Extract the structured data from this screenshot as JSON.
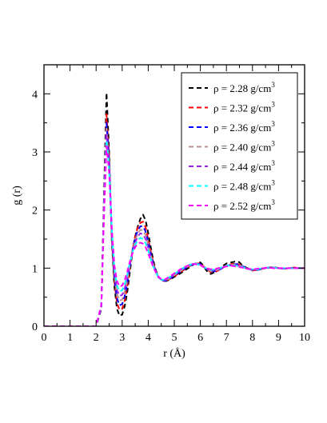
{
  "chart_data": {
    "type": "line",
    "title": "",
    "xlabel": "r (Å)",
    "ylabel": "g (r)",
    "xlim": [
      0,
      10
    ],
    "ylim": [
      0,
      4.5
    ],
    "xticks": [
      0,
      1,
      2,
      3,
      4,
      5,
      6,
      7,
      8,
      9,
      10
    ],
    "yticks": [
      0,
      1,
      2,
      3,
      4
    ],
    "grid": false,
    "legend_position": "top-right",
    "line_style": "dashed",
    "series": [
      {
        "name": "ρ = 2.28 g/cm",
        "sup": "3",
        "color": "#000000",
        "x": [
          0,
          2.0,
          2.2,
          2.3,
          2.4,
          2.5,
          2.6,
          2.7,
          2.8,
          2.9,
          3.0,
          3.1,
          3.2,
          3.3,
          3.4,
          3.5,
          3.6,
          3.7,
          3.8,
          3.9,
          4.0,
          4.1,
          4.2,
          4.3,
          4.4,
          4.5,
          4.6,
          4.7,
          4.8,
          4.9,
          5.0,
          5.2,
          5.4,
          5.6,
          5.8,
          6.0,
          6.1,
          6.2,
          6.3,
          6.4,
          6.5,
          6.6,
          6.8,
          7.0,
          7.2,
          7.4,
          7.5,
          7.6,
          7.8,
          8.0,
          8.2,
          8.4,
          8.6,
          8.8,
          9.0,
          9.2,
          9.4,
          9.6,
          9.8,
          10.0
        ],
        "y": [
          0,
          0,
          0.3,
          2.2,
          4.02,
          3.0,
          1.5,
          0.7,
          0.3,
          0.18,
          0.2,
          0.35,
          0.6,
          0.95,
          1.3,
          1.55,
          1.72,
          1.85,
          1.92,
          1.82,
          1.6,
          1.35,
          1.12,
          0.95,
          0.85,
          0.8,
          0.78,
          0.78,
          0.8,
          0.82,
          0.85,
          0.9,
          0.96,
          1.02,
          1.08,
          1.1,
          1.05,
          0.98,
          0.92,
          0.9,
          0.92,
          0.95,
          1.02,
          1.08,
          1.1,
          1.12,
          1.1,
          1.05,
          1.0,
          0.96,
          0.97,
          0.99,
          1.01,
          1.02,
          1.0,
          0.99,
          1.0,
          1.01,
          1.0,
          1.0
        ]
      },
      {
        "name": "ρ = 2.32 g/cm",
        "sup": "3",
        "color": "#ff0000",
        "x": [
          0,
          2.0,
          2.2,
          2.3,
          2.4,
          2.5,
          2.6,
          2.7,
          2.8,
          2.9,
          3.0,
          3.1,
          3.2,
          3.3,
          3.4,
          3.5,
          3.6,
          3.7,
          3.8,
          3.9,
          4.0,
          4.1,
          4.2,
          4.3,
          4.4,
          4.5,
          4.6,
          4.7,
          4.8,
          4.9,
          5.0,
          5.2,
          5.4,
          5.6,
          5.8,
          6.0,
          6.2,
          6.4,
          6.6,
          6.8,
          7.0,
          7.2,
          7.4,
          7.6,
          7.8,
          8.0,
          8.2,
          8.4,
          8.6,
          8.8,
          9.0,
          9.2,
          9.4,
          9.6,
          9.8,
          10.0
        ],
        "y": [
          0,
          0,
          0.32,
          2.1,
          3.65,
          2.9,
          1.55,
          0.78,
          0.4,
          0.28,
          0.3,
          0.45,
          0.7,
          1.02,
          1.32,
          1.55,
          1.7,
          1.78,
          1.8,
          1.7,
          1.5,
          1.28,
          1.08,
          0.93,
          0.84,
          0.8,
          0.78,
          0.79,
          0.81,
          0.83,
          0.86,
          0.92,
          0.98,
          1.04,
          1.08,
          1.08,
          1.0,
          0.93,
          0.94,
          0.99,
          1.04,
          1.07,
          1.08,
          1.04,
          0.99,
          0.96,
          0.97,
          0.99,
          1.0,
          1.02,
          1.0,
          0.99,
          1.0,
          1.01,
          1.0,
          1.0
        ]
      },
      {
        "name": "ρ = 2.36 g/cm",
        "sup": "3",
        "color": "#0000ff",
        "x": [
          0,
          2.0,
          2.2,
          2.3,
          2.4,
          2.5,
          2.6,
          2.7,
          2.8,
          2.9,
          3.0,
          3.1,
          3.2,
          3.3,
          3.4,
          3.5,
          3.6,
          3.7,
          3.8,
          3.9,
          4.0,
          4.1,
          4.2,
          4.3,
          4.4,
          4.5,
          4.6,
          4.7,
          4.8,
          4.9,
          5.0,
          5.2,
          5.4,
          5.6,
          5.8,
          6.0,
          6.2,
          6.4,
          6.6,
          6.8,
          7.0,
          7.2,
          7.4,
          7.6,
          7.8,
          8.0,
          8.2,
          8.4,
          8.6,
          8.8,
          9.0,
          9.2,
          9.4,
          9.6,
          9.8,
          10.0
        ],
        "y": [
          0,
          0,
          0.33,
          2.05,
          3.5,
          2.85,
          1.6,
          0.85,
          0.48,
          0.36,
          0.38,
          0.52,
          0.75,
          1.05,
          1.32,
          1.52,
          1.65,
          1.72,
          1.72,
          1.63,
          1.45,
          1.25,
          1.07,
          0.93,
          0.84,
          0.8,
          0.78,
          0.79,
          0.81,
          0.84,
          0.87,
          0.93,
          0.99,
          1.04,
          1.08,
          1.07,
          1.0,
          0.94,
          0.95,
          0.99,
          1.04,
          1.06,
          1.07,
          1.04,
          0.99,
          0.97,
          0.97,
          0.99,
          1.01,
          1.01,
          1.0,
          0.99,
          1.0,
          1.0,
          1.0,
          1.0
        ]
      },
      {
        "name": "ρ = 2.40 g/cm",
        "sup": "3",
        "color": "#bc8f8f",
        "x": [
          0,
          2.0,
          2.2,
          2.3,
          2.4,
          2.5,
          2.6,
          2.7,
          2.8,
          2.9,
          3.0,
          3.1,
          3.2,
          3.3,
          3.4,
          3.5,
          3.6,
          3.7,
          3.8,
          3.9,
          4.0,
          4.1,
          4.2,
          4.3,
          4.4,
          4.5,
          4.6,
          4.7,
          4.8,
          4.9,
          5.0,
          5.2,
          5.4,
          5.6,
          5.8,
          6.0,
          6.2,
          6.4,
          6.6,
          6.8,
          7.0,
          7.2,
          7.4,
          7.6,
          7.8,
          8.0,
          8.2,
          8.4,
          8.6,
          8.8,
          9.0,
          9.2,
          9.4,
          9.6,
          9.8,
          10.0
        ],
        "y": [
          0,
          0,
          0.34,
          2.0,
          3.4,
          2.8,
          1.62,
          0.9,
          0.55,
          0.44,
          0.46,
          0.6,
          0.8,
          1.07,
          1.3,
          1.48,
          1.6,
          1.66,
          1.65,
          1.57,
          1.4,
          1.22,
          1.05,
          0.93,
          0.84,
          0.8,
          0.79,
          0.8,
          0.82,
          0.85,
          0.88,
          0.94,
          1.0,
          1.05,
          1.08,
          1.06,
          1.0,
          0.95,
          0.96,
          1.0,
          1.04,
          1.06,
          1.06,
          1.03,
          0.99,
          0.97,
          0.98,
          0.99,
          1.01,
          1.01,
          1.0,
          0.99,
          1.0,
          1.0,
          1.0,
          1.0
        ]
      },
      {
        "name": "ρ = 2.44 g/cm",
        "sup": "3",
        "color": "#a020f0",
        "x": [
          0,
          2.0,
          2.2,
          2.3,
          2.4,
          2.5,
          2.6,
          2.7,
          2.8,
          2.9,
          3.0,
          3.1,
          3.2,
          3.3,
          3.4,
          3.5,
          3.6,
          3.7,
          3.8,
          3.9,
          4.0,
          4.1,
          4.2,
          4.3,
          4.4,
          4.5,
          4.6,
          4.7,
          4.8,
          4.9,
          5.0,
          5.2,
          5.4,
          5.6,
          5.8,
          6.0,
          6.2,
          6.4,
          6.6,
          6.8,
          7.0,
          7.2,
          7.4,
          7.6,
          7.8,
          8.0,
          8.2,
          8.4,
          8.6,
          8.8,
          9.0,
          9.2,
          9.4,
          9.6,
          9.8,
          10.0
        ],
        "y": [
          0,
          0,
          0.35,
          1.95,
          3.3,
          2.75,
          1.65,
          0.95,
          0.62,
          0.52,
          0.54,
          0.66,
          0.85,
          1.09,
          1.29,
          1.44,
          1.55,
          1.6,
          1.58,
          1.5,
          1.35,
          1.19,
          1.04,
          0.92,
          0.84,
          0.8,
          0.79,
          0.8,
          0.83,
          0.86,
          0.89,
          0.95,
          1.01,
          1.06,
          1.08,
          1.06,
          1.0,
          0.96,
          0.97,
          1.0,
          1.04,
          1.05,
          1.05,
          1.02,
          0.99,
          0.97,
          0.98,
          1.0,
          1.01,
          1.01,
          1.0,
          0.99,
          1.0,
          1.0,
          1.0,
          1.0
        ]
      },
      {
        "name": "ρ = 2.48 g/cm",
        "sup": "3",
        "color": "#00ffff",
        "x": [
          0,
          2.0,
          2.2,
          2.3,
          2.4,
          2.5,
          2.6,
          2.7,
          2.8,
          2.9,
          3.0,
          3.1,
          3.2,
          3.3,
          3.4,
          3.5,
          3.6,
          3.7,
          3.8,
          3.9,
          4.0,
          4.1,
          4.2,
          4.3,
          4.4,
          4.5,
          4.6,
          4.7,
          4.8,
          4.9,
          5.0,
          5.2,
          5.4,
          5.6,
          5.8,
          6.0,
          6.2,
          6.4,
          6.6,
          6.8,
          7.0,
          7.2,
          7.4,
          7.6,
          7.8,
          8.0,
          8.2,
          8.4,
          8.6,
          8.8,
          9.0,
          9.2,
          9.4,
          9.6,
          9.8,
          10.0
        ],
        "y": [
          0,
          0,
          0.36,
          1.9,
          3.2,
          2.7,
          1.68,
          1.0,
          0.7,
          0.6,
          0.62,
          0.72,
          0.9,
          1.1,
          1.28,
          1.4,
          1.48,
          1.52,
          1.5,
          1.43,
          1.3,
          1.16,
          1.02,
          0.92,
          0.84,
          0.8,
          0.8,
          0.81,
          0.84,
          0.87,
          0.9,
          0.96,
          1.02,
          1.06,
          1.08,
          1.05,
          1.0,
          0.97,
          0.98,
          1.01,
          1.04,
          1.05,
          1.04,
          1.02,
          0.99,
          0.98,
          0.98,
          1.0,
          1.01,
          1.01,
          1.0,
          1.0,
          1.0,
          1.0,
          1.0,
          1.0
        ]
      },
      {
        "name": "ρ = 2.52 g/cm",
        "sup": "3",
        "color": "#ff00ff",
        "x": [
          0,
          2.0,
          2.2,
          2.3,
          2.4,
          2.5,
          2.6,
          2.7,
          2.8,
          2.9,
          3.0,
          3.1,
          3.2,
          3.3,
          3.4,
          3.5,
          3.6,
          3.7,
          3.8,
          3.9,
          4.0,
          4.1,
          4.2,
          4.3,
          4.4,
          4.5,
          4.6,
          4.7,
          4.8,
          4.9,
          5.0,
          5.2,
          5.4,
          5.6,
          5.8,
          6.0,
          6.2,
          6.4,
          6.6,
          6.8,
          7.0,
          7.2,
          7.4,
          7.6,
          7.8,
          8.0,
          8.2,
          8.4,
          8.6,
          8.8,
          9.0,
          9.2,
          9.4,
          9.6,
          9.8,
          10.0
        ],
        "y": [
          0,
          0,
          0.37,
          1.85,
          3.1,
          2.65,
          1.7,
          1.05,
          0.78,
          0.68,
          0.7,
          0.8,
          0.95,
          1.12,
          1.26,
          1.36,
          1.42,
          1.44,
          1.42,
          1.36,
          1.25,
          1.13,
          1.01,
          0.92,
          0.85,
          0.81,
          0.8,
          0.82,
          0.85,
          0.88,
          0.91,
          0.97,
          1.02,
          1.06,
          1.07,
          1.05,
          1.0,
          0.98,
          0.99,
          1.01,
          1.03,
          1.04,
          1.03,
          1.01,
          0.99,
          0.98,
          0.99,
          1.0,
          1.01,
          1.0,
          1.0,
          1.0,
          1.0,
          1.0,
          1.0,
          1.0
        ]
      }
    ]
  }
}
